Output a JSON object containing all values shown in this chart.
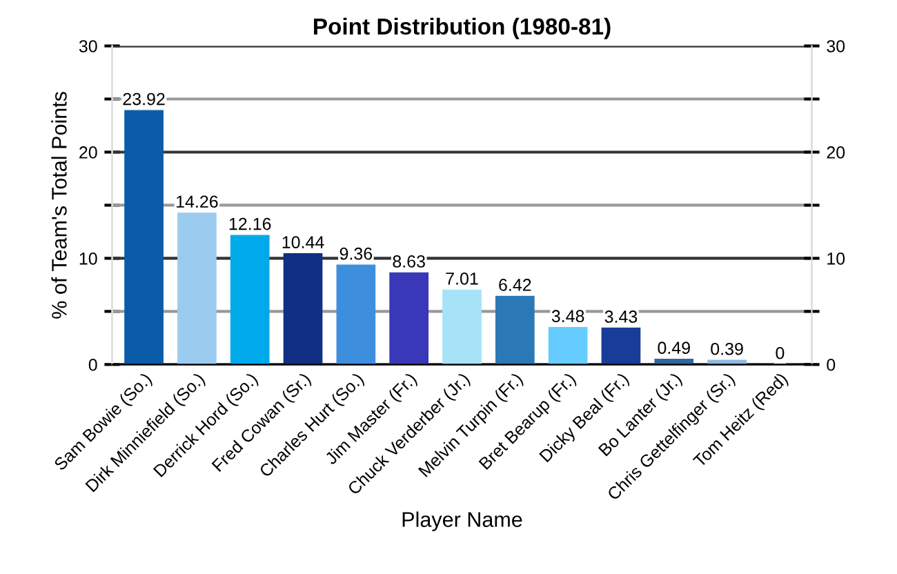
{
  "chart_data": {
    "type": "bar",
    "title": "Point Distribution (1980-81)",
    "xlabel": "Player Name",
    "ylabel": "% of Team's Total Points",
    "categories": [
      "Sam Bowie (So.)",
      "Dirk Minniefield (So.)",
      "Derrick Hord (So.)",
      "Fred Cowan (Sr.)",
      "Charles Hurt (So.)",
      "Jim Master (Fr.)",
      "Chuck Verderber (Jr.)",
      "Melvin Turpin (Fr.)",
      "Bret Bearup (Fr.)",
      "Dicky Beal (Fr.)",
      "Bo Lanter (Jr.)",
      "Chris Gettelfinger (Sr.)",
      "Tom Heitz (Red)"
    ],
    "values": [
      23.92,
      14.26,
      12.16,
      10.44,
      9.36,
      8.63,
      7.01,
      6.42,
      3.48,
      3.43,
      0.49,
      0.39,
      0
    ],
    "colors": [
      "#0a5ca8",
      "#9ccbf0",
      "#00aaea",
      "#102f85",
      "#3e8ede",
      "#3838b8",
      "#a6e2f8",
      "#2a78b6",
      "#66ccff",
      "#183c98",
      "#2f66a0",
      "#8fb8e0",
      "#6a9fd8"
    ],
    "ylim": [
      0,
      30
    ],
    "yticks": [
      0,
      {
        "value": 5,
        "label": null
      },
      10,
      {
        "value": 15,
        "label": null
      },
      20,
      {
        "value": 25,
        "label": null
      },
      30
    ],
    "y2lim": [
      0,
      30
    ],
    "y2ticks": [
      0,
      {
        "value": 5,
        "label": null
      },
      10,
      {
        "value": 15,
        "label": null
      },
      20,
      {
        "value": 25,
        "label": null
      },
      30
    ],
    "grid": "y",
    "data_labels": true,
    "legend": false
  }
}
